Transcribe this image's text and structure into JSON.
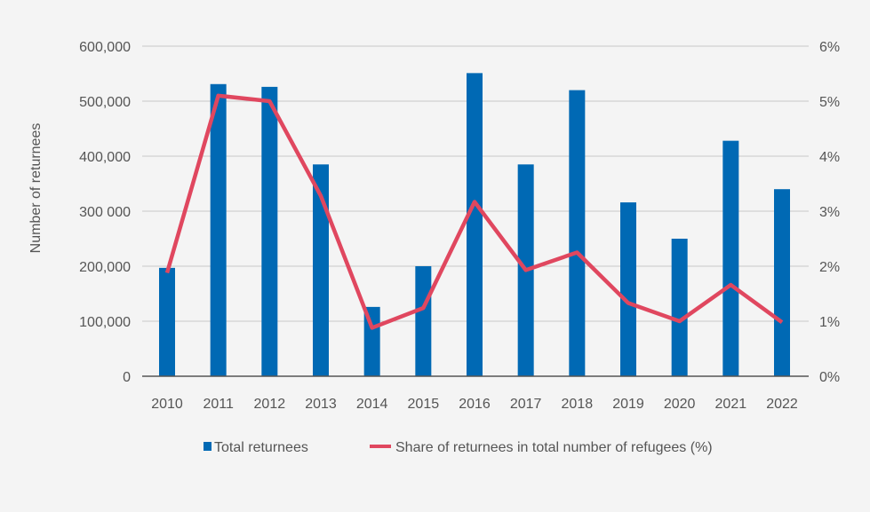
{
  "chart_data": {
    "type": "bar+line",
    "title": "",
    "ylabel": "Number of returnees",
    "ylabel_right": "",
    "categories": [
      "2010",
      "2011",
      "2012",
      "2013",
      "2014",
      "2015",
      "2016",
      "2017",
      "2018",
      "2019",
      "2020",
      "2021",
      "2022"
    ],
    "y_ticks": [
      "0",
      "100,000",
      "200,000",
      "300 000",
      "400,000",
      "500,000",
      "600,000"
    ],
    "y2_ticks": [
      "0%",
      "1%",
      "2%",
      "3%",
      "4%",
      "5%",
      "6%"
    ],
    "ylim": [
      0,
      600000
    ],
    "y2lim": [
      0,
      6
    ],
    "grid": true,
    "legend_position": "bottom",
    "series": [
      {
        "name": "Total returnees",
        "type": "bar",
        "axis": "left",
        "color": "#0069b4",
        "values": [
          197000,
          531000,
          526000,
          385000,
          126000,
          200000,
          551000,
          385000,
          520000,
          316000,
          250000,
          428000,
          340000
        ]
      },
      {
        "name": "Share of returnees in total number of refugees (%)",
        "type": "line",
        "axis": "right",
        "color": "#e0475f",
        "values": [
          1.88,
          5.1,
          5.0,
          3.28,
          0.88,
          1.24,
          3.17,
          1.93,
          2.25,
          1.33,
          1.0,
          1.66,
          0.98
        ]
      }
    ]
  }
}
